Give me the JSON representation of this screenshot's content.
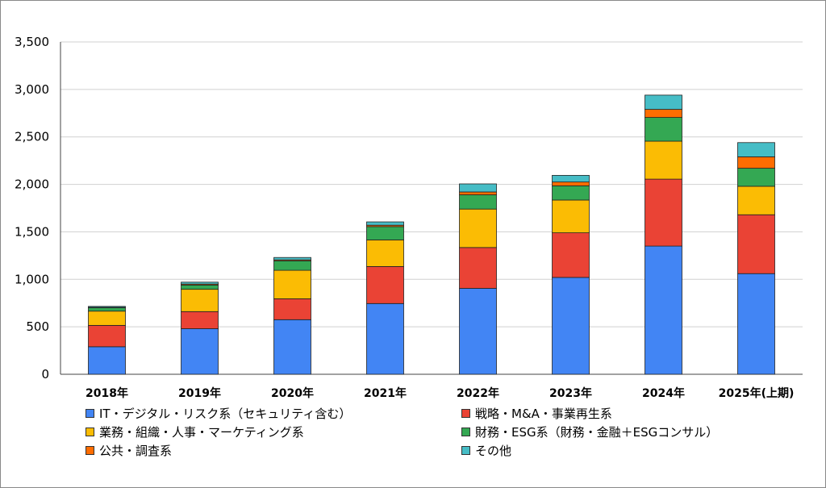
{
  "chart_data": {
    "type": "bar",
    "stacked": true,
    "categories": [
      "2018年",
      "2019年",
      "2020年",
      "2021年",
      "2022年",
      "2023年",
      "2024年",
      "2025年(上期)"
    ],
    "ylim": [
      0,
      3500
    ],
    "yticks": [
      "0",
      "500",
      "1,000",
      "1,500",
      "2,000",
      "2,500",
      "3,000",
      "3,500"
    ],
    "ytick_values": [
      0,
      500,
      1000,
      1500,
      2000,
      2500,
      3000,
      3500
    ],
    "grid": true,
    "legend_position": "bottom",
    "series": [
      {
        "name": "IT・デジタル・リスク系（セキュリティ含む）",
        "color": "#4285F4",
        "values": [
          290,
          480,
          575,
          745,
          905,
          1020,
          1350,
          1060
        ]
      },
      {
        "name": "戦略・M&A・事業再生系",
        "color": "#EA4335",
        "values": [
          225,
          180,
          220,
          390,
          430,
          470,
          705,
          620
        ]
      },
      {
        "name": "業務・組織・人事・マーケティング系",
        "color": "#FBBC04",
        "values": [
          150,
          235,
          300,
          280,
          405,
          345,
          400,
          300
        ]
      },
      {
        "name": "財務・ESG系（財務・金融＋ESGコンサル）",
        "color": "#34A853",
        "values": [
          35,
          45,
          100,
          140,
          150,
          150,
          250,
          190
        ]
      },
      {
        "name": "公共・調査系",
        "color": "#FF6D01",
        "values": [
          5,
          10,
          10,
          15,
          30,
          40,
          85,
          120
        ]
      },
      {
        "name": "その他",
        "color": "#46BDC6",
        "values": [
          10,
          20,
          25,
          35,
          85,
          70,
          150,
          150
        ]
      }
    ]
  }
}
